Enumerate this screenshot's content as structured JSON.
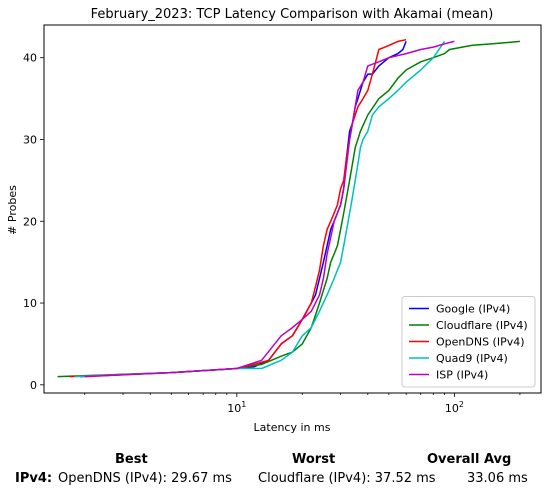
{
  "chart_data": {
    "type": "line",
    "title": "February_2023: TCP Latency Comparison with Akamai (mean)",
    "xlabel": "Latency in ms",
    "ylabel": "# Probes",
    "xscale": "log",
    "xlim": [
      1.3,
      250
    ],
    "ylim": [
      -1,
      44
    ],
    "x_ticks": [
      {
        "value": 10,
        "label": "10^1"
      },
      {
        "value": 100,
        "label": "10^2"
      }
    ],
    "y_ticks": [
      0,
      10,
      20,
      30,
      40
    ],
    "grid": false,
    "legend_position": "lower-right",
    "series": [
      {
        "name": "Google (IPv4)",
        "color": "#0000ff",
        "x": [
          1.9,
          5,
          10,
          12,
          14,
          16,
          18,
          20,
          22,
          23,
          24,
          25,
          26,
          27,
          28,
          29,
          30,
          31,
          32,
          33,
          34,
          35,
          36,
          37,
          38,
          40,
          42,
          45,
          50,
          55,
          58,
          60
        ],
        "y": [
          1,
          1.5,
          2,
          2.2,
          3,
          5,
          6,
          8,
          10,
          11,
          13,
          15,
          17,
          19,
          20,
          21,
          22,
          24,
          28,
          31,
          32,
          34,
          35,
          36,
          37,
          38,
          38,
          39,
          40,
          40.5,
          41,
          42
        ]
      },
      {
        "name": "Cloudflare (IPv4)",
        "color": "#008000",
        "x": [
          1.5,
          5,
          10,
          13,
          16,
          18,
          20,
          22,
          24,
          26,
          27,
          28,
          29,
          30,
          31,
          33,
          35,
          37,
          40,
          45,
          50,
          55,
          60,
          70,
          80,
          90,
          95,
          120,
          150,
          200
        ],
        "y": [
          1,
          1.5,
          2,
          2.5,
          3.5,
          4,
          5,
          7,
          10,
          13,
          15,
          16,
          17,
          19,
          21,
          25,
          29,
          31,
          33,
          35,
          36,
          37.5,
          38.5,
          39.5,
          40,
          40.5,
          41,
          41.5,
          41.7,
          42
        ]
      },
      {
        "name": "OpenDNS (IPv4)",
        "color": "#ff0000",
        "x": [
          1.7,
          5,
          10,
          12,
          14,
          16,
          18,
          20,
          22,
          23,
          24,
          25,
          26,
          27,
          28,
          29,
          30,
          31,
          32,
          33,
          34,
          35,
          36,
          38,
          40,
          42,
          45,
          50,
          55,
          60
        ],
        "y": [
          1,
          1.5,
          2,
          2.5,
          3,
          5,
          6,
          8,
          10,
          12,
          14,
          17,
          19,
          20,
          21,
          22,
          24,
          25,
          28,
          30,
          32,
          33,
          34,
          35,
          36,
          38,
          41,
          41.5,
          42,
          42.2
        ]
      },
      {
        "name": "Quad9 (IPv4)",
        "color": "#00bfbf",
        "x": [
          1.8,
          5,
          10,
          13,
          16,
          18,
          20,
          22,
          24,
          26,
          28,
          30,
          31,
          32,
          33,
          34,
          35,
          36,
          37,
          38,
          40,
          42,
          45,
          50,
          55,
          60,
          70,
          80,
          90
        ],
        "y": [
          1,
          1.5,
          2,
          2,
          3,
          4,
          6,
          7,
          9,
          11,
          13,
          15,
          17,
          19,
          21,
          23,
          25,
          27,
          29,
          30,
          31,
          33,
          34,
          35,
          36,
          37,
          38.5,
          40,
          42
        ]
      },
      {
        "name": "ISP (IPv4)",
        "color": "#bf00bf",
        "x": [
          2,
          5,
          10,
          13,
          16,
          18,
          20,
          22,
          24,
          25,
          26,
          27,
          28,
          29,
          30,
          31,
          32,
          33,
          34,
          35,
          36,
          38,
          40,
          45,
          50,
          60,
          70,
          80,
          90,
          100
        ],
        "y": [
          1,
          1.5,
          2,
          3,
          6,
          7,
          8,
          9,
          11,
          13,
          16,
          18,
          20,
          21,
          22,
          24,
          27,
          30,
          32,
          34,
          36,
          37,
          39,
          39.5,
          40,
          40.5,
          41,
          41.3,
          41.7,
          42
        ]
      }
    ]
  },
  "summary": {
    "best_header": "Best",
    "worst_header": "Worst",
    "avg_header": "Overall Avg",
    "row_label": "IPv4",
    "row_sep": ":",
    "best_value": "OpenDNS (IPv4): 29.67 ms",
    "worst_value": "Cloudflare (IPv4): 37.52 ms",
    "avg_value": "33.06 ms"
  }
}
